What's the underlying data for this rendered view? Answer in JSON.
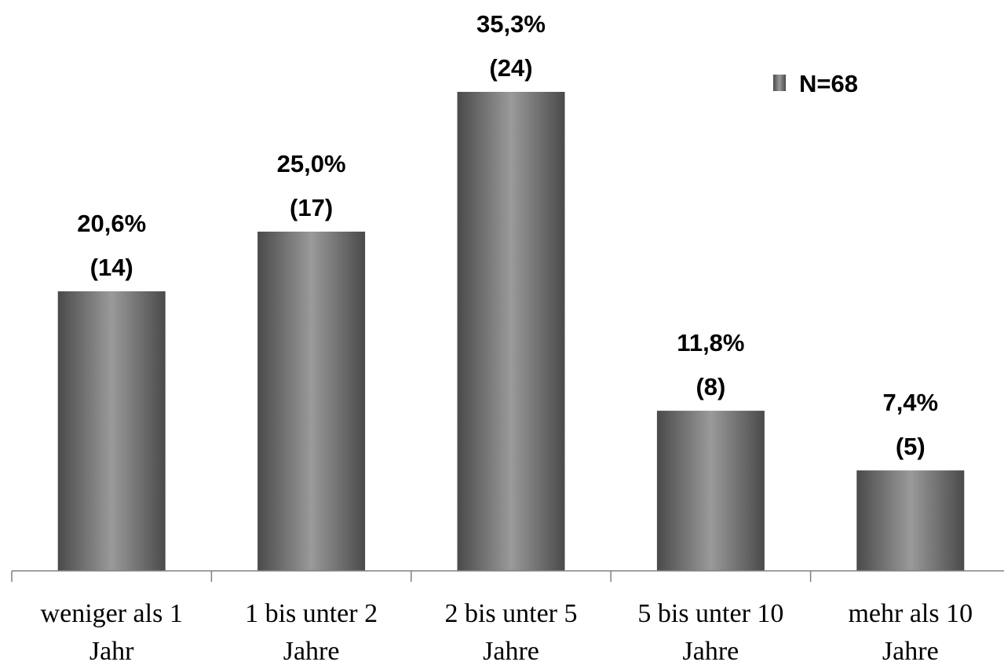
{
  "chart_data": {
    "type": "bar",
    "categories": [
      [
        "weniger als 1",
        "Jahr"
      ],
      [
        "1 bis unter 2",
        "Jahre"
      ],
      [
        "2 bis unter 5",
        "Jahre"
      ],
      [
        "5 bis unter 10",
        "Jahre"
      ],
      [
        "mehr als 10",
        "Jahre"
      ]
    ],
    "series": [
      {
        "name": "N=68",
        "values": [
          20.6,
          25.0,
          35.3,
          11.8,
          7.4
        ],
        "counts": [
          14,
          17,
          24,
          8,
          5
        ],
        "value_labels": [
          "20,6%",
          "25,0%",
          "35,3%",
          "11,8%",
          "7,4%"
        ],
        "count_labels": [
          "(14)",
          "(17)",
          "(24)",
          "(8)",
          "(5)"
        ]
      }
    ],
    "ylim": [
      0,
      40
    ],
    "grid": false,
    "legend": "top-right",
    "colors": {
      "bar_edge": "#4a4a4a",
      "bar_highlight": "#9a9a9a",
      "axis": "#808080"
    }
  }
}
